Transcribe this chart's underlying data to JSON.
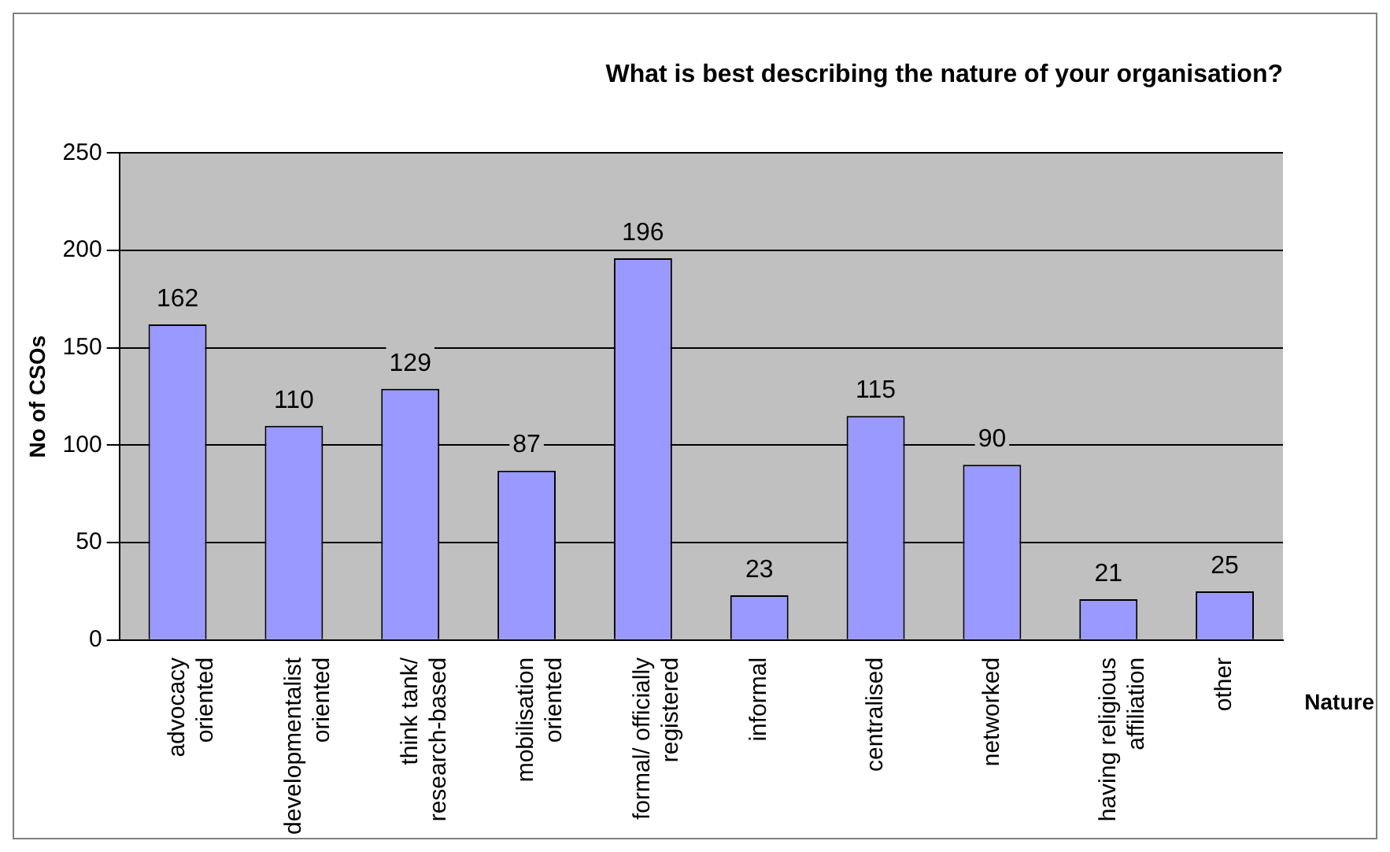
{
  "chart_data": {
    "type": "bar",
    "title": "What is best describing the nature of your organisation?",
    "xlabel": "Nature",
    "ylabel": "No of CSOs",
    "categories": [
      "advocacy oriented",
      "developmentalist oriented",
      "think tank/ research-based",
      "mobilisation oriented",
      "formal/ officially registered",
      "informal",
      "centralised",
      "networked",
      "having religious affiliation",
      "other"
    ],
    "values": [
      162,
      110,
      129,
      87,
      196,
      23,
      115,
      90,
      21,
      25
    ],
    "color": "#9999ff",
    "ylim": [
      0,
      250
    ],
    "yticks": [
      0,
      50,
      100,
      150,
      200,
      250
    ],
    "grid": "y",
    "data_labels": true,
    "legend": false
  }
}
